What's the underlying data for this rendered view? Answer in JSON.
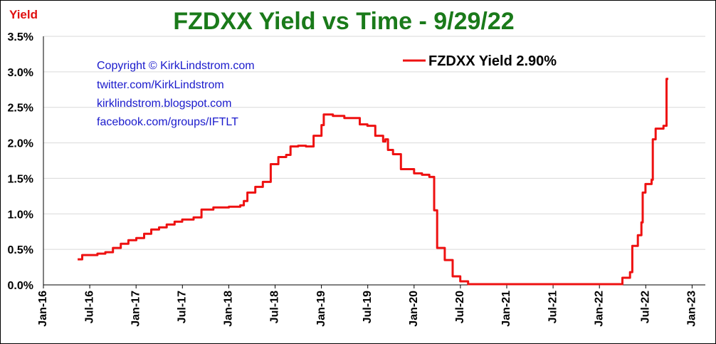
{
  "chart_data": {
    "type": "line",
    "title": "FZDXX Yield vs Time  -  9/29/22",
    "ylabel": "Yield",
    "xlabel": "",
    "colors": {
      "title": "#1a7a1a",
      "ylabel": "#e01010",
      "series": "#ee1111",
      "notes": "#1a1acc"
    },
    "ylim": [
      0,
      3.5
    ],
    "y_ticks": [
      "0.0%",
      "0.5%",
      "1.0%",
      "1.5%",
      "2.0%",
      "2.5%",
      "3.0%",
      "3.5%"
    ],
    "x_ticks": [
      "Jan-16",
      "Jul-16",
      "Jan-17",
      "Jul-17",
      "Jan-18",
      "Jul-18",
      "Jan-19",
      "Jul-19",
      "Jan-20",
      "Jul-20",
      "Jan-21",
      "Jul-21",
      "Jan-22",
      "Jul-22",
      "Jan-23"
    ],
    "grid": "horizontal",
    "legend_position": "top-right",
    "annotations": [
      "Copyright © KirkLindstrom.com",
      "twitter.com/KirkLindstrom",
      "kirklindstrom.blogspot.com",
      "facebook.com/groups/IFTLT"
    ],
    "series": [
      {
        "name": "FZDXX Yield 2.90%",
        "points": [
          [
            "2016-05-15",
            0.36
          ],
          [
            "2016-06-01",
            0.36
          ],
          [
            "2016-06-02",
            0.42
          ],
          [
            "2016-07-01",
            0.42
          ],
          [
            "2016-08-01",
            0.44
          ],
          [
            "2016-09-01",
            0.46
          ],
          [
            "2016-10-01",
            0.52
          ],
          [
            "2016-11-01",
            0.58
          ],
          [
            "2016-12-01",
            0.63
          ],
          [
            "2017-01-01",
            0.66
          ],
          [
            "2017-02-01",
            0.72
          ],
          [
            "2017-03-01",
            0.78
          ],
          [
            "2017-04-01",
            0.81
          ],
          [
            "2017-05-01",
            0.85
          ],
          [
            "2017-06-01",
            0.89
          ],
          [
            "2017-07-01",
            0.92
          ],
          [
            "2017-08-15",
            0.95
          ],
          [
            "2017-09-15",
            1.06
          ],
          [
            "2017-11-01",
            1.09
          ],
          [
            "2018-01-01",
            1.1
          ],
          [
            "2018-02-15",
            1.12
          ],
          [
            "2018-03-01",
            1.18
          ],
          [
            "2018-03-15",
            1.3
          ],
          [
            "2018-04-15",
            1.38
          ],
          [
            "2018-05-15",
            1.45
          ],
          [
            "2018-06-15",
            1.7
          ],
          [
            "2018-07-15",
            1.8
          ],
          [
            "2018-08-15",
            1.83
          ],
          [
            "2018-09-01",
            1.95
          ],
          [
            "2018-10-01",
            1.96
          ],
          [
            "2018-11-01",
            1.95
          ],
          [
            "2018-12-01",
            2.1
          ],
          [
            "2019-01-01",
            2.25
          ],
          [
            "2019-01-10",
            2.4
          ],
          [
            "2019-02-15",
            2.38
          ],
          [
            "2019-04-01",
            2.35
          ],
          [
            "2019-06-01",
            2.26
          ],
          [
            "2019-07-01",
            2.24
          ],
          [
            "2019-08-01",
            2.1
          ],
          [
            "2019-09-01",
            2.02
          ],
          [
            "2019-09-10",
            2.05
          ],
          [
            "2019-09-20",
            1.9
          ],
          [
            "2019-10-10",
            1.84
          ],
          [
            "2019-11-10",
            1.63
          ],
          [
            "2020-01-01",
            1.57
          ],
          [
            "2020-02-01",
            1.55
          ],
          [
            "2020-03-01",
            1.52
          ],
          [
            "2020-03-20",
            1.05
          ],
          [
            "2020-04-01",
            0.52
          ],
          [
            "2020-05-01",
            0.35
          ],
          [
            "2020-06-01",
            0.12
          ],
          [
            "2020-07-01",
            0.05
          ],
          [
            "2020-08-01",
            0.01
          ],
          [
            "2022-03-01",
            0.01
          ],
          [
            "2022-04-01",
            0.1
          ],
          [
            "2022-05-01",
            0.18
          ],
          [
            "2022-05-10",
            0.55
          ],
          [
            "2022-06-01",
            0.7
          ],
          [
            "2022-06-15",
            0.88
          ],
          [
            "2022-06-20",
            1.3
          ],
          [
            "2022-07-01",
            1.42
          ],
          [
            "2022-07-25",
            1.48
          ],
          [
            "2022-07-30",
            2.05
          ],
          [
            "2022-08-10",
            2.2
          ],
          [
            "2022-09-10",
            2.24
          ],
          [
            "2022-09-22",
            2.9
          ],
          [
            "2022-09-29",
            2.9
          ]
        ]
      }
    ]
  }
}
